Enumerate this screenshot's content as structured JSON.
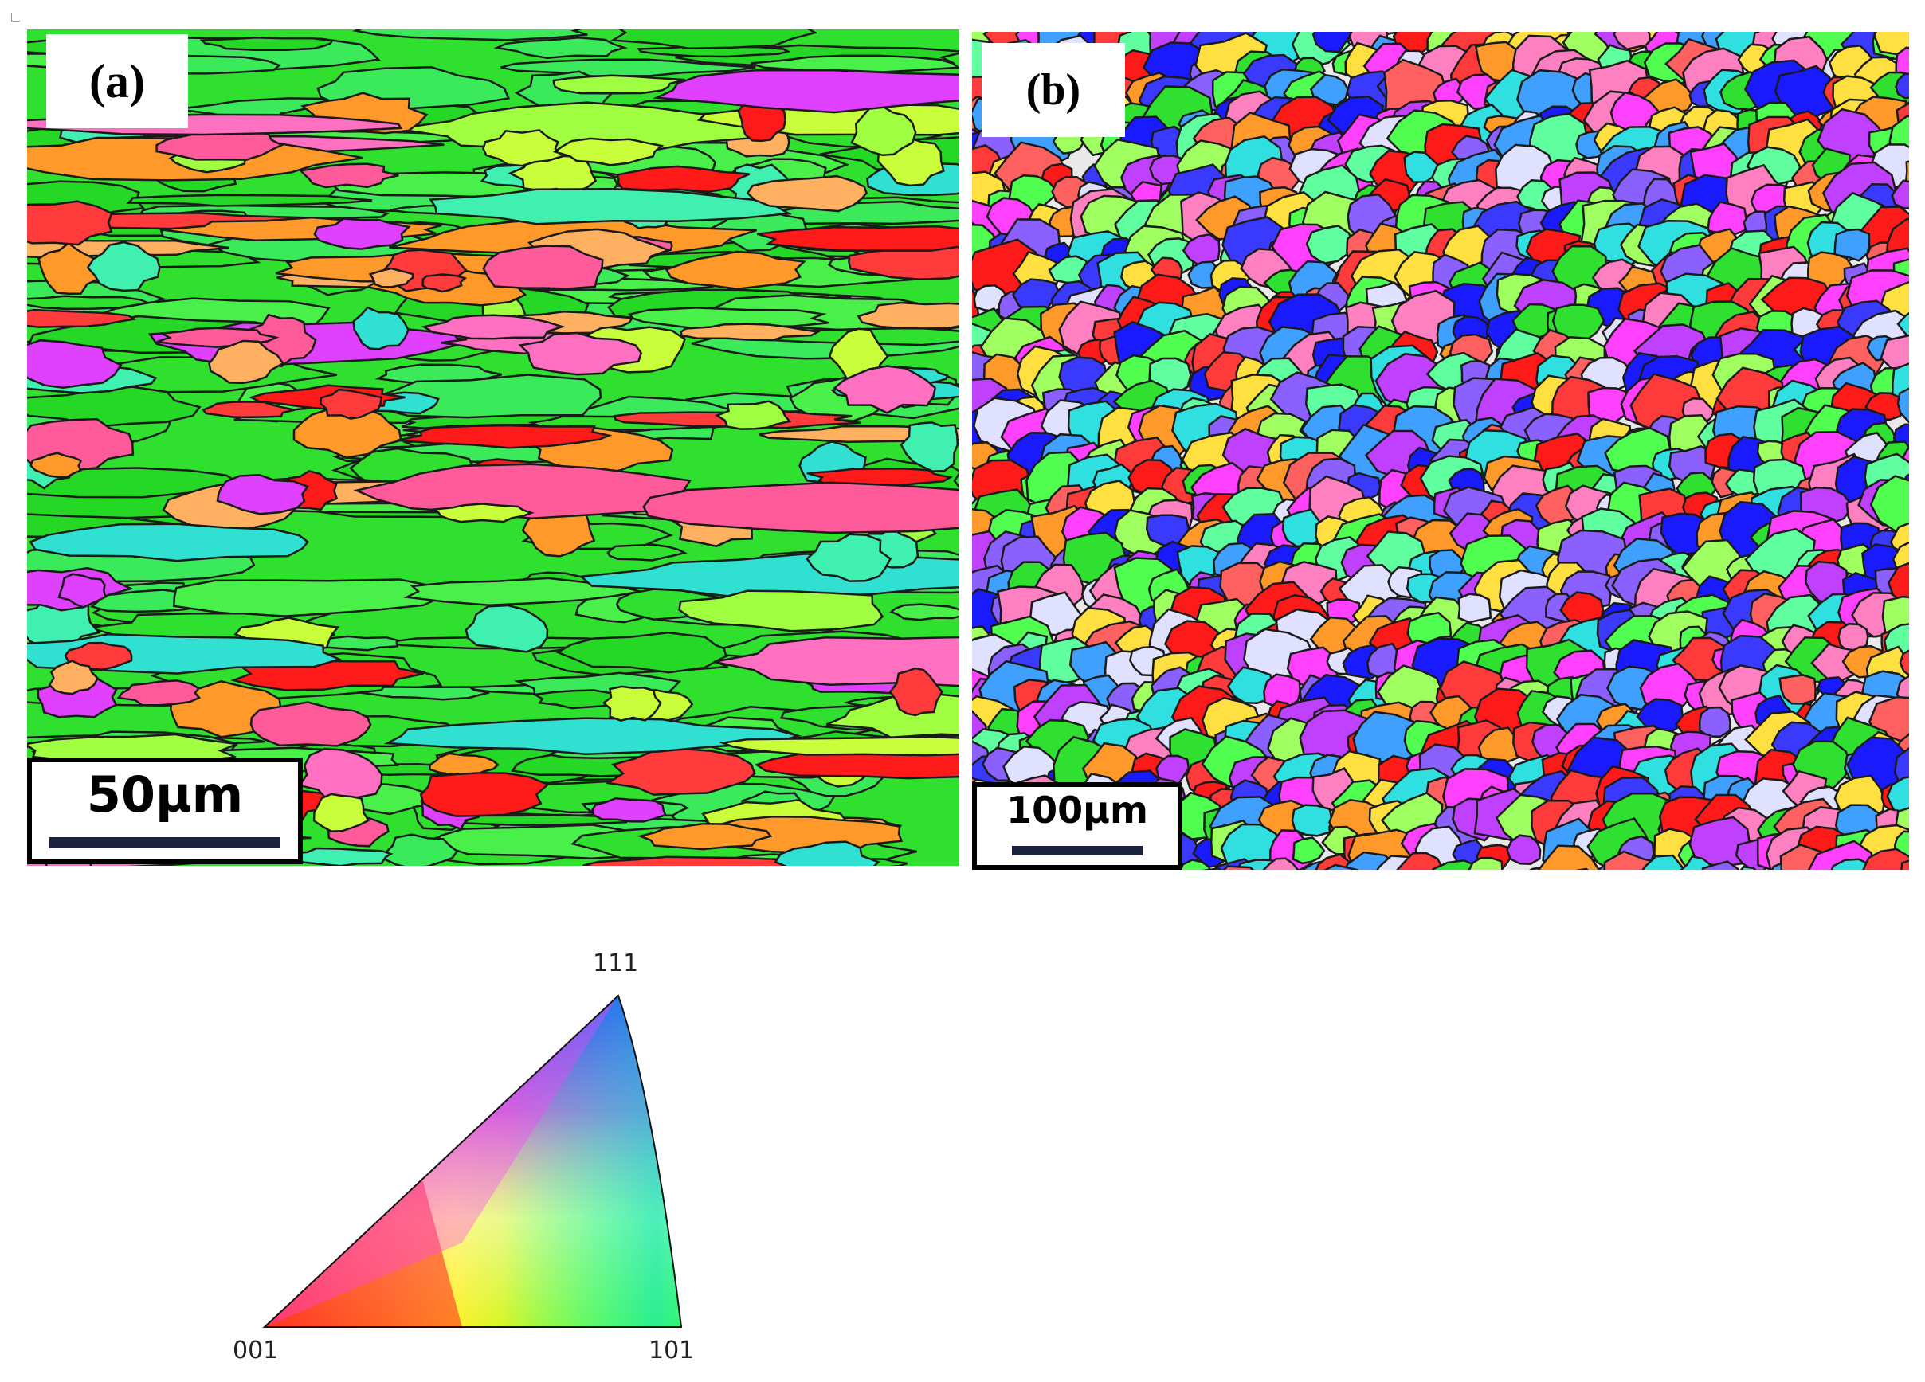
{
  "panels": {
    "a": {
      "label": "(a)",
      "scale_text": "50µm"
    },
    "b": {
      "label": "(b)",
      "scale_text": "100µm"
    }
  },
  "ipf_legend": {
    "corner_top": "111",
    "corner_left": "001",
    "corner_right": "101"
  },
  "colors": {
    "dominant_grain_a": "#2fe02f",
    "grain_boundary": "#1a1a1a",
    "ipf_001": "#ff0000",
    "ipf_101": "#00ff00",
    "ipf_111": "#0000ff"
  }
}
